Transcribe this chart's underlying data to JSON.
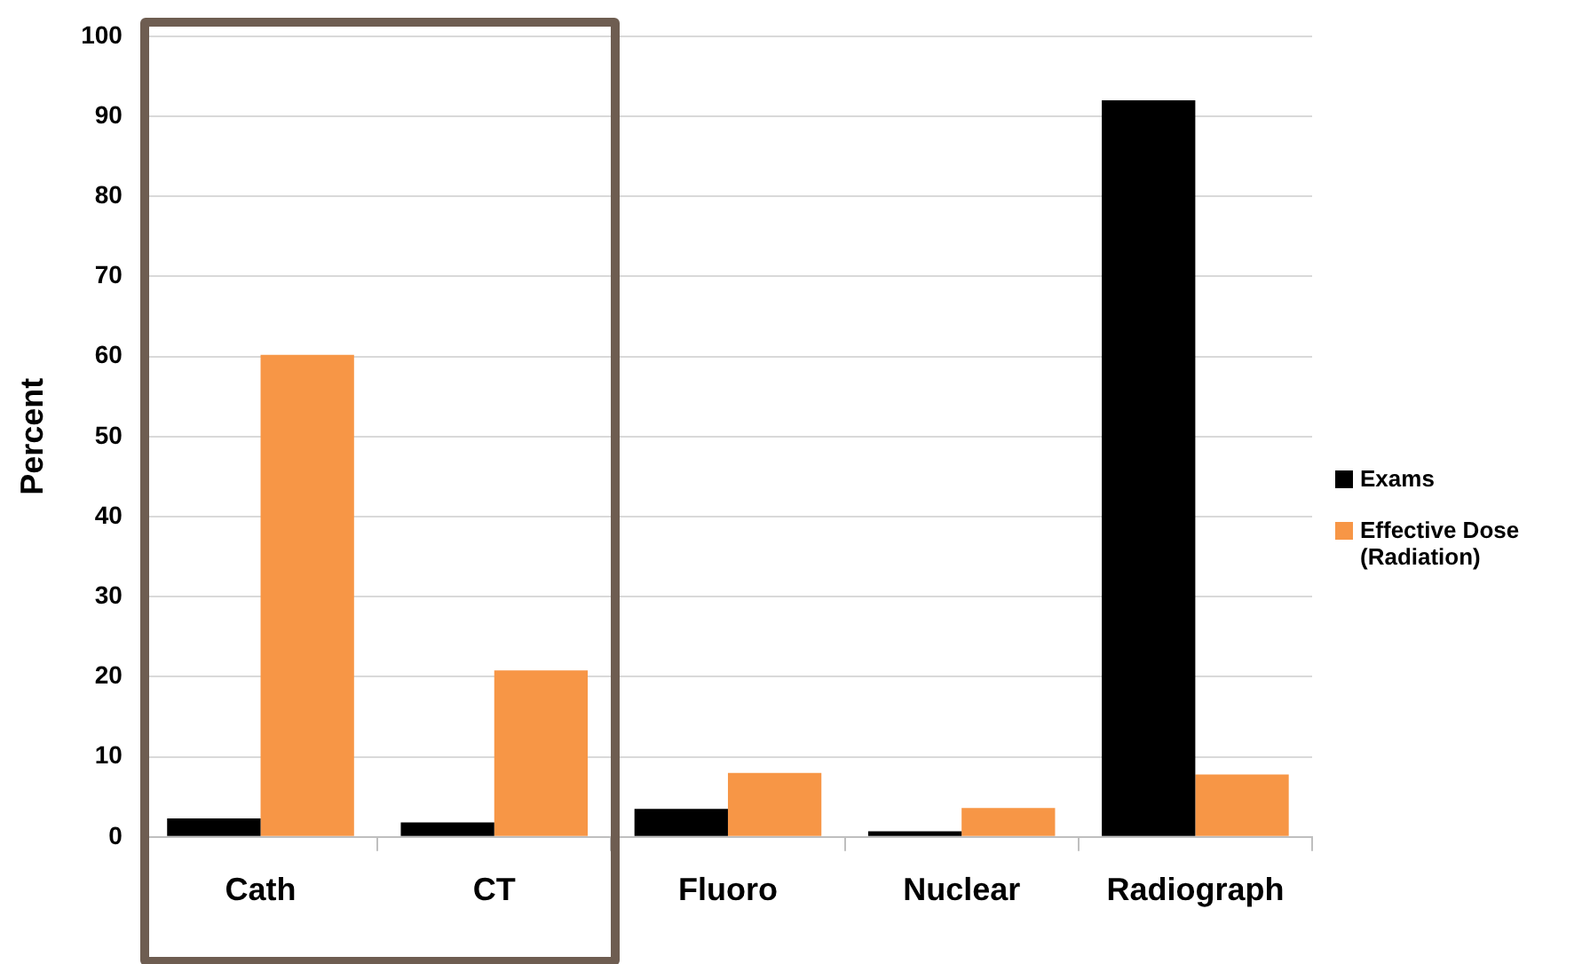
{
  "chart_data": {
    "type": "bar",
    "ylabel": "Percent",
    "categories": [
      "Cath",
      "CT",
      "Fluoro",
      "Nuclear",
      "Radiograph"
    ],
    "series": [
      {
        "name": "Exams",
        "color": "#000000",
        "values": [
          2.3,
          1.8,
          3.5,
          0.7,
          92
        ]
      },
      {
        "name": "Effective Dose (Radiation)",
        "color": "#f79646",
        "values": [
          60.2,
          20.8,
          8.0,
          3.6,
          7.8
        ]
      }
    ],
    "ylim": [
      0,
      100
    ],
    "yticks": [
      0,
      10,
      20,
      30,
      40,
      50,
      60,
      70,
      80,
      90,
      100
    ],
    "grid": "y",
    "legend": "right"
  }
}
